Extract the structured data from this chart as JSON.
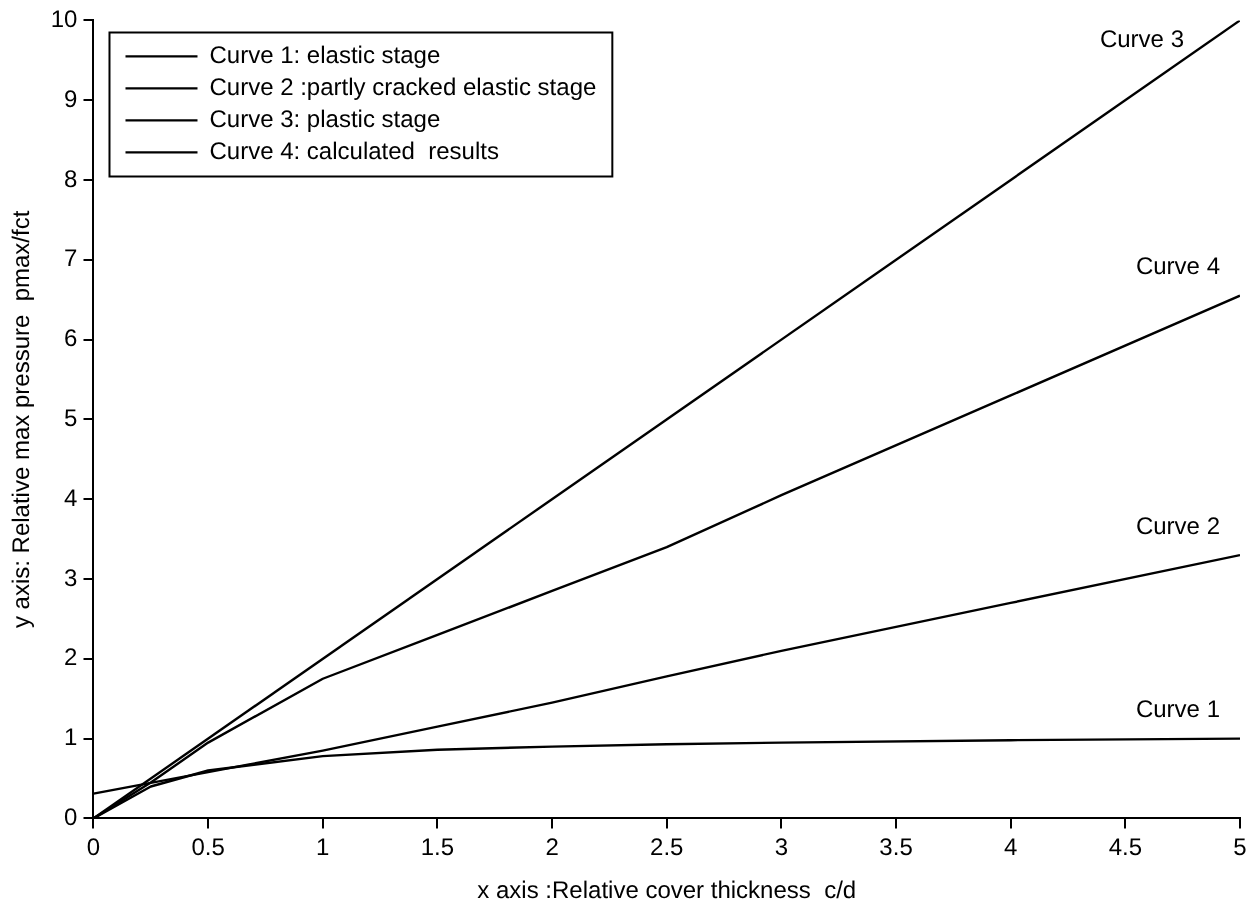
{
  "chart_data": {
    "type": "line",
    "xlabel": "x axis :Relative cover thickness  c/d",
    "ylabel": "y axis: Relative max pressure  pmax/fct",
    "series": [
      {
        "name": "Curve 1: elastic stage",
        "color": "#000000",
        "x": [
          0,
          0.25,
          0.5,
          1,
          1.5,
          2,
          2.5,
          3,
          4,
          5
        ],
        "values": [
          0,
          0.4,
          0.6,
          0.78,
          0.86,
          0.9,
          0.93,
          0.95,
          0.98,
          1.0
        ]
      },
      {
        "name": "Curve 2 :partly cracked elastic stage",
        "color": "#000000",
        "x": [
          0,
          0.5,
          1,
          1.5,
          2,
          2.5,
          3,
          4,
          5
        ],
        "values": [
          0.31,
          0.58,
          0.85,
          1.15,
          1.45,
          1.78,
          2.1,
          2.7,
          3.3
        ]
      },
      {
        "name": "Curve 3: plastic stage",
        "color": "#000000",
        "x": [
          0,
          5
        ],
        "values": [
          0,
          10
        ]
      },
      {
        "name": "Curve 4: calculated  results",
        "color": "#000000",
        "x": [
          0,
          0.25,
          0.5,
          1,
          1.5,
          2,
          2.5,
          3,
          4,
          5
        ],
        "values": [
          0,
          0.45,
          0.95,
          1.75,
          2.3,
          2.85,
          3.4,
          4.05,
          5.3,
          6.55
        ]
      }
    ],
    "annotations": [
      "Curve 1",
      "Curve 2",
      "Curve 3",
      "Curve 4"
    ],
    "xlim": [
      0,
      5
    ],
    "xticks": [
      0,
      0.5,
      1,
      1.5,
      2,
      2.5,
      3,
      3.5,
      4,
      4.5,
      5
    ],
    "ylim": [
      0,
      10
    ],
    "yticks": [
      0,
      1,
      2,
      3,
      4,
      5,
      6,
      7,
      8,
      9,
      10
    ],
    "grid": false,
    "legend": "top left",
    "marker": "none",
    "line_style": "solid"
  }
}
